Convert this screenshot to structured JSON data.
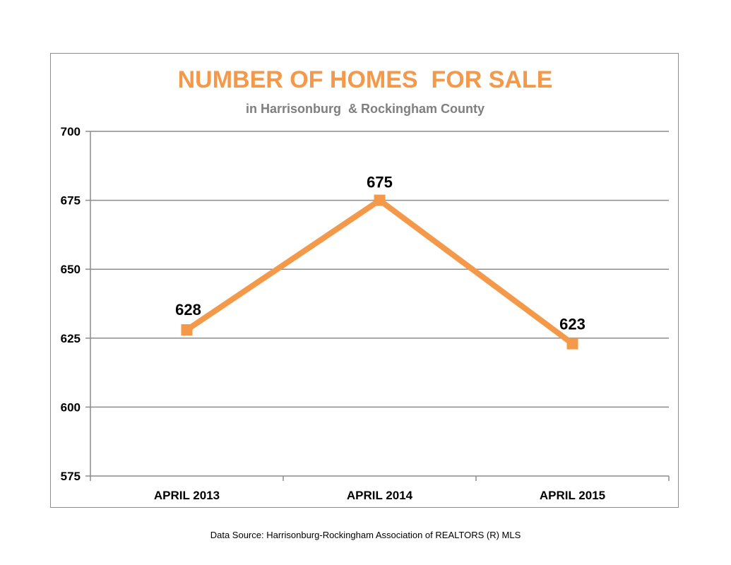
{
  "chart_data": {
    "type": "line",
    "title": "NUMBER OF HOMES  FOR SALE",
    "subtitle": "in Harrisonburg  & Rockingham County",
    "categories": [
      "APRIL 2013",
      "APRIL 2014",
      "APRIL 2015"
    ],
    "series": [
      {
        "values": [
          628,
          675,
          623
        ],
        "color": "#f4984a",
        "marker": "square"
      }
    ],
    "data_labels": [
      "628",
      "675",
      "623"
    ],
    "ylim": [
      575,
      700
    ],
    "yticks": [
      575,
      600,
      625,
      650,
      675,
      700
    ],
    "grid": true,
    "legend": "none"
  },
  "footer": {
    "source": "Data Source: Harrisonburg-Rockingham Association of REALTORS (R) MLS"
  },
  "colors": {
    "accent": "#f4984a",
    "subtitle": "#7f7f7f",
    "grid": "#8c8c8c"
  }
}
